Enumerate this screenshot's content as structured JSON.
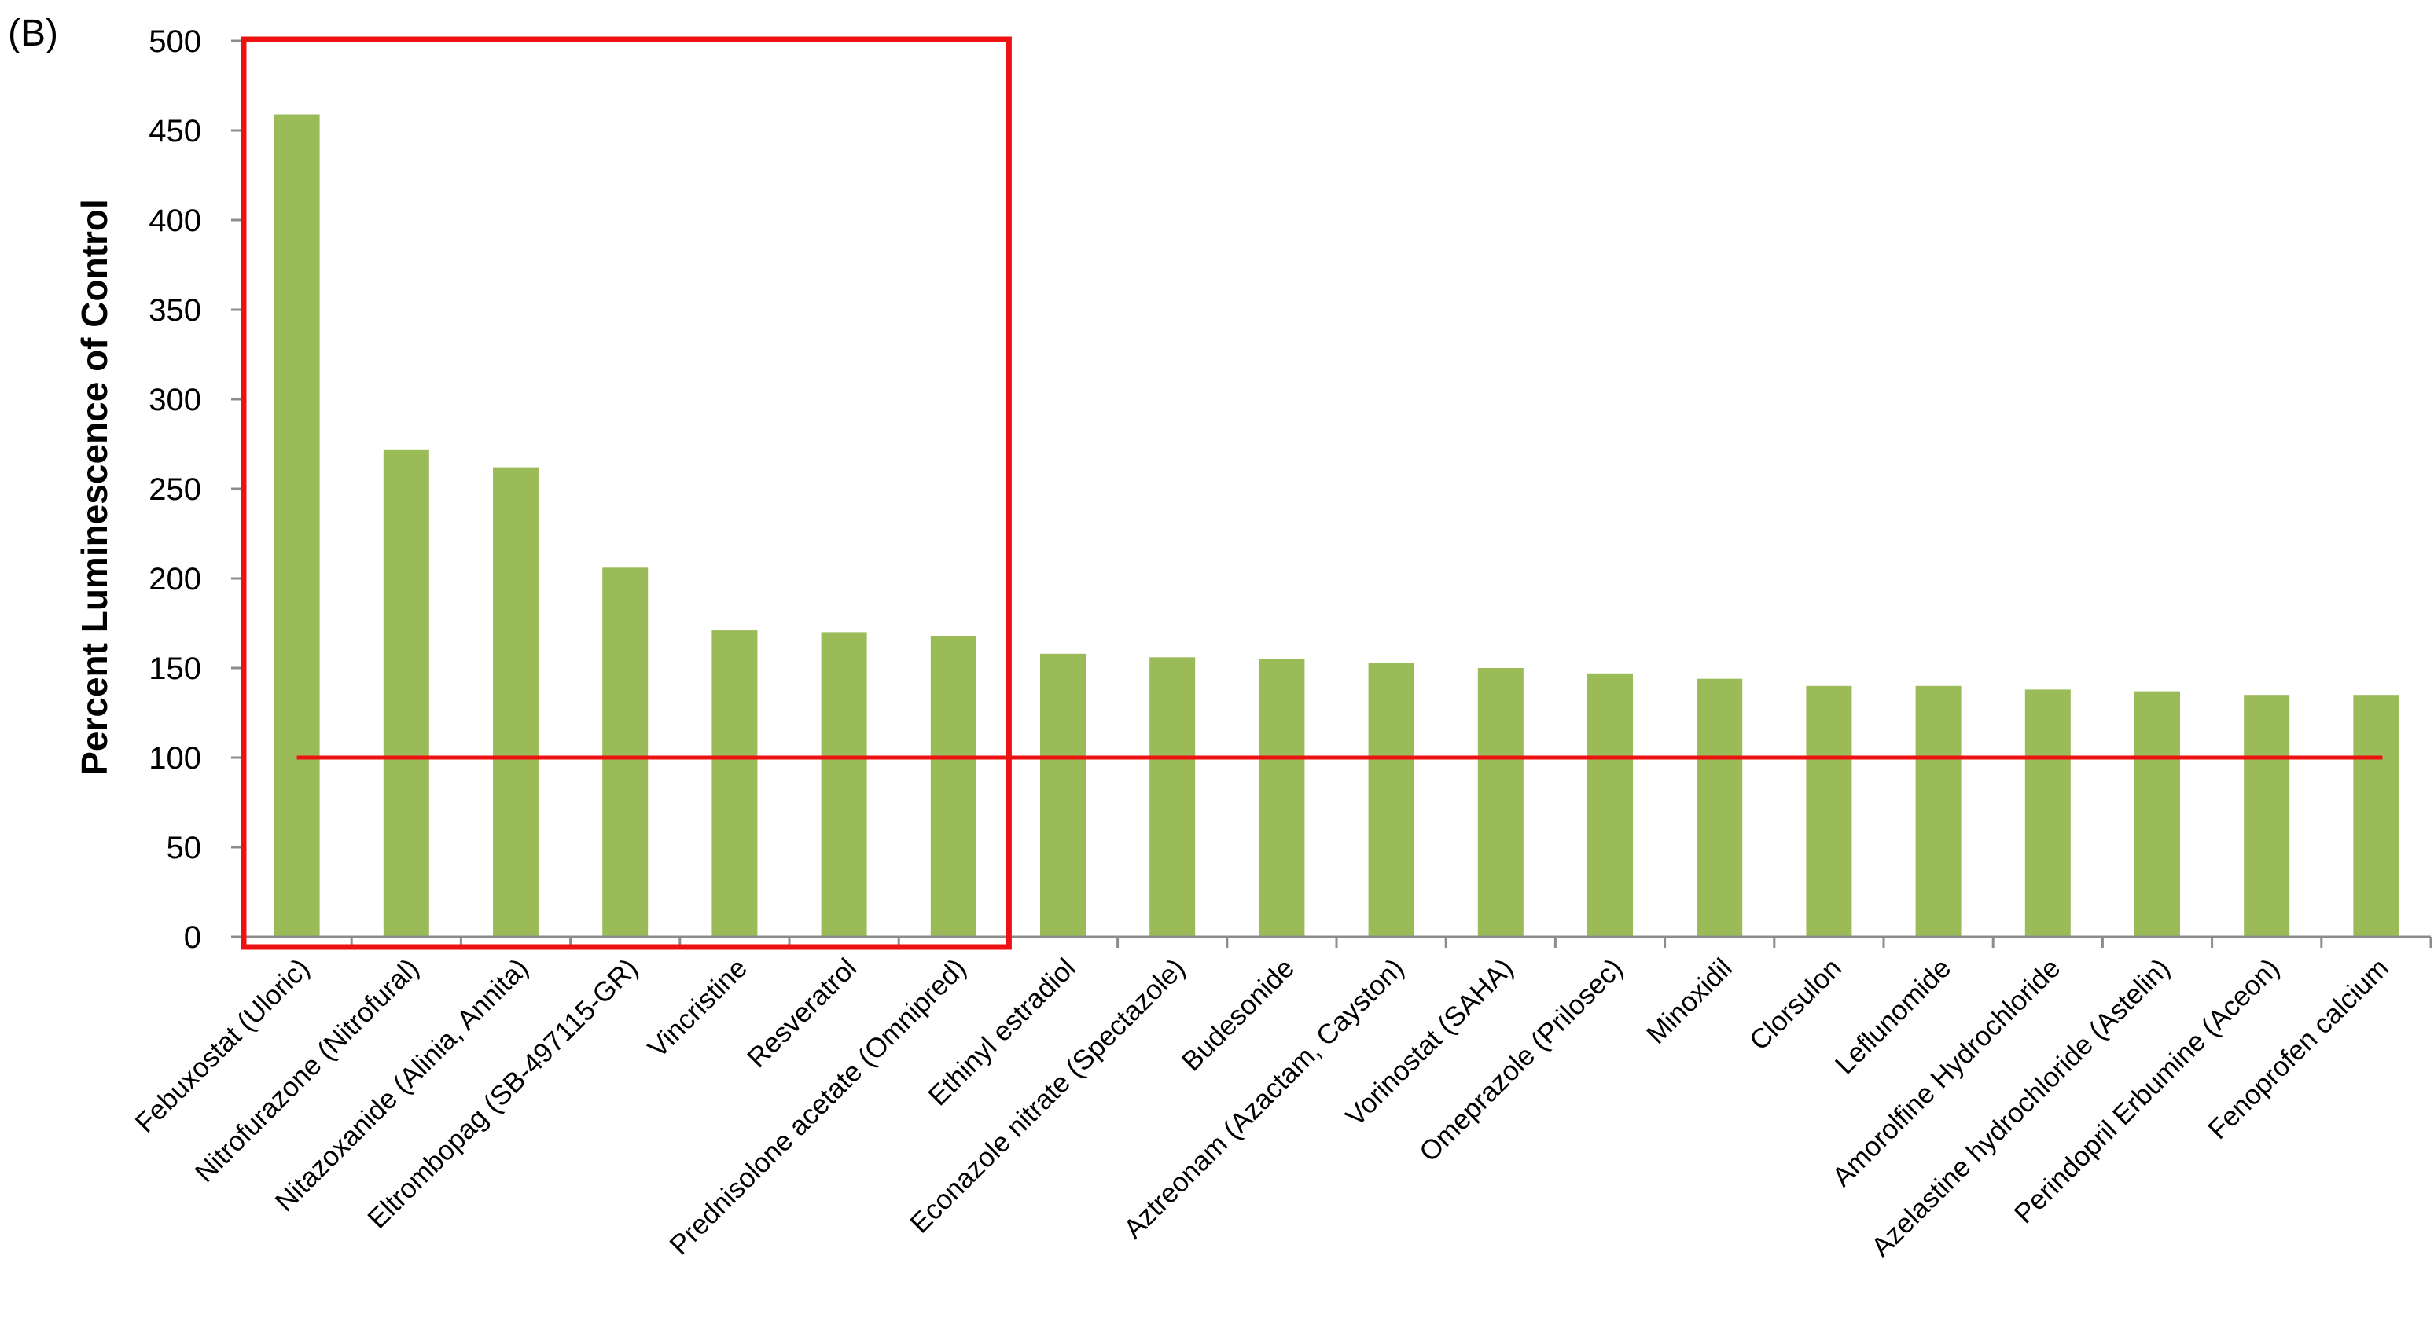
{
  "panel_label": "(B)",
  "colors": {
    "bar": "#9bbb59",
    "reference_line": "#ee1111",
    "highlight_box": "#ee1111",
    "axis": "#8c8c8c"
  },
  "chart_data": {
    "type": "bar",
    "title": "",
    "xlabel": "",
    "ylabel": "Percent Luminescence of Control",
    "ylim": [
      0,
      500
    ],
    "yticks": [
      0,
      50,
      100,
      150,
      200,
      250,
      300,
      350,
      400,
      450,
      500
    ],
    "grid": false,
    "legend": "none",
    "categories": [
      "Febuxostat (Uloric)",
      "Nitrofurazone (Nitrofural)",
      "Nitazoxanide (Alinia, Annita)",
      "Eltrombopag (SB-497115-GR)",
      "Vincristine",
      "Resveratrol",
      "Prednisolone acetate (Omnipred)",
      "Ethinyl estradiol",
      "Econazole nitrate (Spectazole)",
      "Budesonide",
      "Aztreonam (Azactam, Cayston)",
      "Vorinostat (SAHA)",
      "Omeprazole (Prilosec)",
      "Minoxidil",
      "Clorsulon",
      "Leflunomide",
      "Amorolfine Hydrochloride",
      "Azelastine hydrochloride (Astelin)",
      "Perindopril Erbumine (Aceon)",
      "Fenoprofen calcium"
    ],
    "values": [
      459,
      272,
      262,
      206,
      171,
      170,
      168,
      158,
      156,
      155,
      153,
      150,
      147,
      144,
      140,
      140,
      138,
      137,
      135,
      135
    ],
    "reference_line": {
      "y": 100
    },
    "highlight": {
      "first_index": 0,
      "last_index": 6
    }
  }
}
